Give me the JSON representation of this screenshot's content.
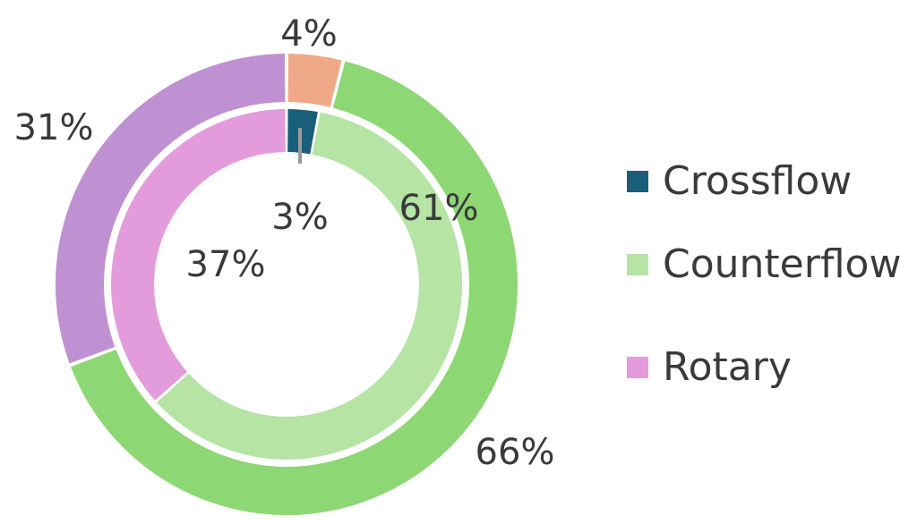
{
  "chart_data": {
    "type": "pie",
    "subtype": "nested-donut",
    "legend_position": "right",
    "categories": [
      "Crossflow",
      "Counterflow",
      "Rotary"
    ],
    "colors": {
      "outer": [
        "#f0a988",
        "#8dd774",
        "#bf90d2"
      ],
      "inner": [
        "#1a5f7a",
        "#b5e4a5",
        "#e39cdb"
      ],
      "legend": [
        "#1a5f7a",
        "#b5e4a5",
        "#e39cdb"
      ]
    },
    "series": [
      {
        "ring": "outer",
        "values": [
          4,
          66,
          31
        ],
        "labels": [
          "4%",
          "66%",
          "31%"
        ]
      },
      {
        "ring": "inner",
        "values": [
          3,
          61,
          37
        ],
        "labels": [
          "3%",
          "61%",
          "37%"
        ]
      }
    ]
  },
  "legend": {
    "items": [
      {
        "label": "Crossflow",
        "color": "#1a5f7a"
      },
      {
        "label": "Counterflow",
        "color": "#b5e4a5"
      },
      {
        "label": "Rotary",
        "color": "#e39cdb"
      }
    ]
  }
}
